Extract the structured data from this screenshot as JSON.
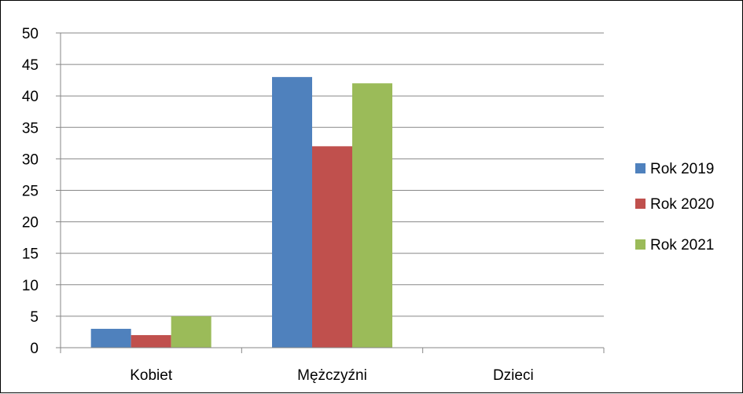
{
  "chart_data": {
    "type": "bar",
    "categories": [
      "Kobiet",
      "Mężczyźni",
      "Dzieci"
    ],
    "series": [
      {
        "name": "Rok 2019",
        "color": "#4F81BD",
        "values": [
          3,
          43,
          0
        ]
      },
      {
        "name": "Rok 2020",
        "color": "#C0504D",
        "values": [
          2,
          32,
          0
        ]
      },
      {
        "name": "Rok 2021",
        "color": "#9BBB59",
        "values": [
          5,
          42,
          0
        ]
      }
    ],
    "ylim": [
      0,
      50
    ],
    "yticks": [
      0,
      5,
      10,
      15,
      20,
      25,
      30,
      35,
      40,
      45,
      50
    ],
    "grid": true,
    "legend_position": "right"
  }
}
